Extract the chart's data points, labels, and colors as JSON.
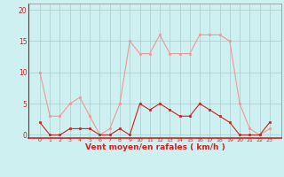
{
  "x": [
    0,
    1,
    2,
    3,
    4,
    5,
    6,
    7,
    8,
    9,
    10,
    11,
    12,
    13,
    14,
    15,
    16,
    17,
    18,
    19,
    20,
    21,
    22,
    23
  ],
  "mean_wind": [
    2,
    0,
    0,
    1,
    1,
    1,
    0,
    0,
    1,
    0,
    5,
    4,
    5,
    4,
    3,
    3,
    5,
    4,
    3,
    2,
    0,
    0,
    0,
    2
  ],
  "gust_wind": [
    10,
    3,
    3,
    5,
    6,
    3,
    0,
    1,
    5,
    15,
    13,
    13,
    16,
    13,
    13,
    13,
    16,
    16,
    16,
    15,
    5,
    1,
    0,
    1
  ],
  "bg_color": "#cef0f0",
  "grid_color": "#aacccc",
  "line_color_mean": "#cc2222",
  "line_color_gust": "#ee9999",
  "xlabel": "Vent moyen/en rafales ( km/h )",
  "ylim": [
    -0.5,
    21
  ],
  "yticks": [
    0,
    5,
    10,
    15,
    20
  ],
  "xticks": [
    0,
    1,
    2,
    3,
    4,
    5,
    6,
    7,
    8,
    9,
    10,
    11,
    12,
    13,
    14,
    15,
    16,
    17,
    18,
    19,
    20,
    21,
    22,
    23
  ]
}
